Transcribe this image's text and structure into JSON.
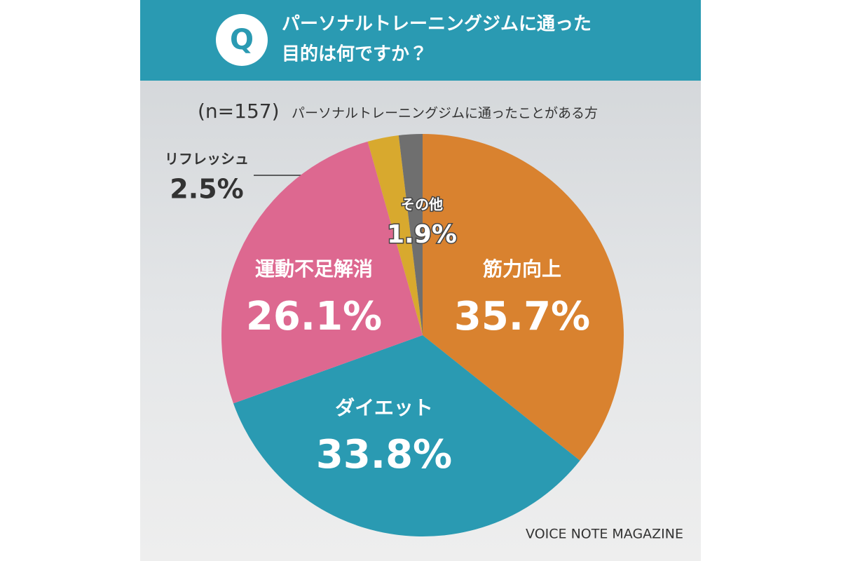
{
  "chart_data": {
    "type": "pie",
    "icon_label": "Q",
    "title_lines": [
      "パーソナルトレーニングジムに通った",
      "目的は何ですか？"
    ],
    "sample": "(n=157)",
    "subtitle": "パーソナルトレーニングジムに通ったことがある方",
    "categories": [
      "筋力向上",
      "ダイエット",
      "運動不足解消",
      "リフレッシュ",
      "その他"
    ],
    "values": [
      35.7,
      33.8,
      26.1,
      2.5,
      1.9
    ],
    "value_labels": [
      "35.7%",
      "33.8%",
      "26.1%",
      "2.5%",
      "1.9%"
    ],
    "colors": [
      "#d9822f",
      "#2a9ab2",
      "#dd6890",
      "#d8a92e",
      "#6f6f6f"
    ],
    "credit": "VOICE NOTE MAGAZINE"
  }
}
